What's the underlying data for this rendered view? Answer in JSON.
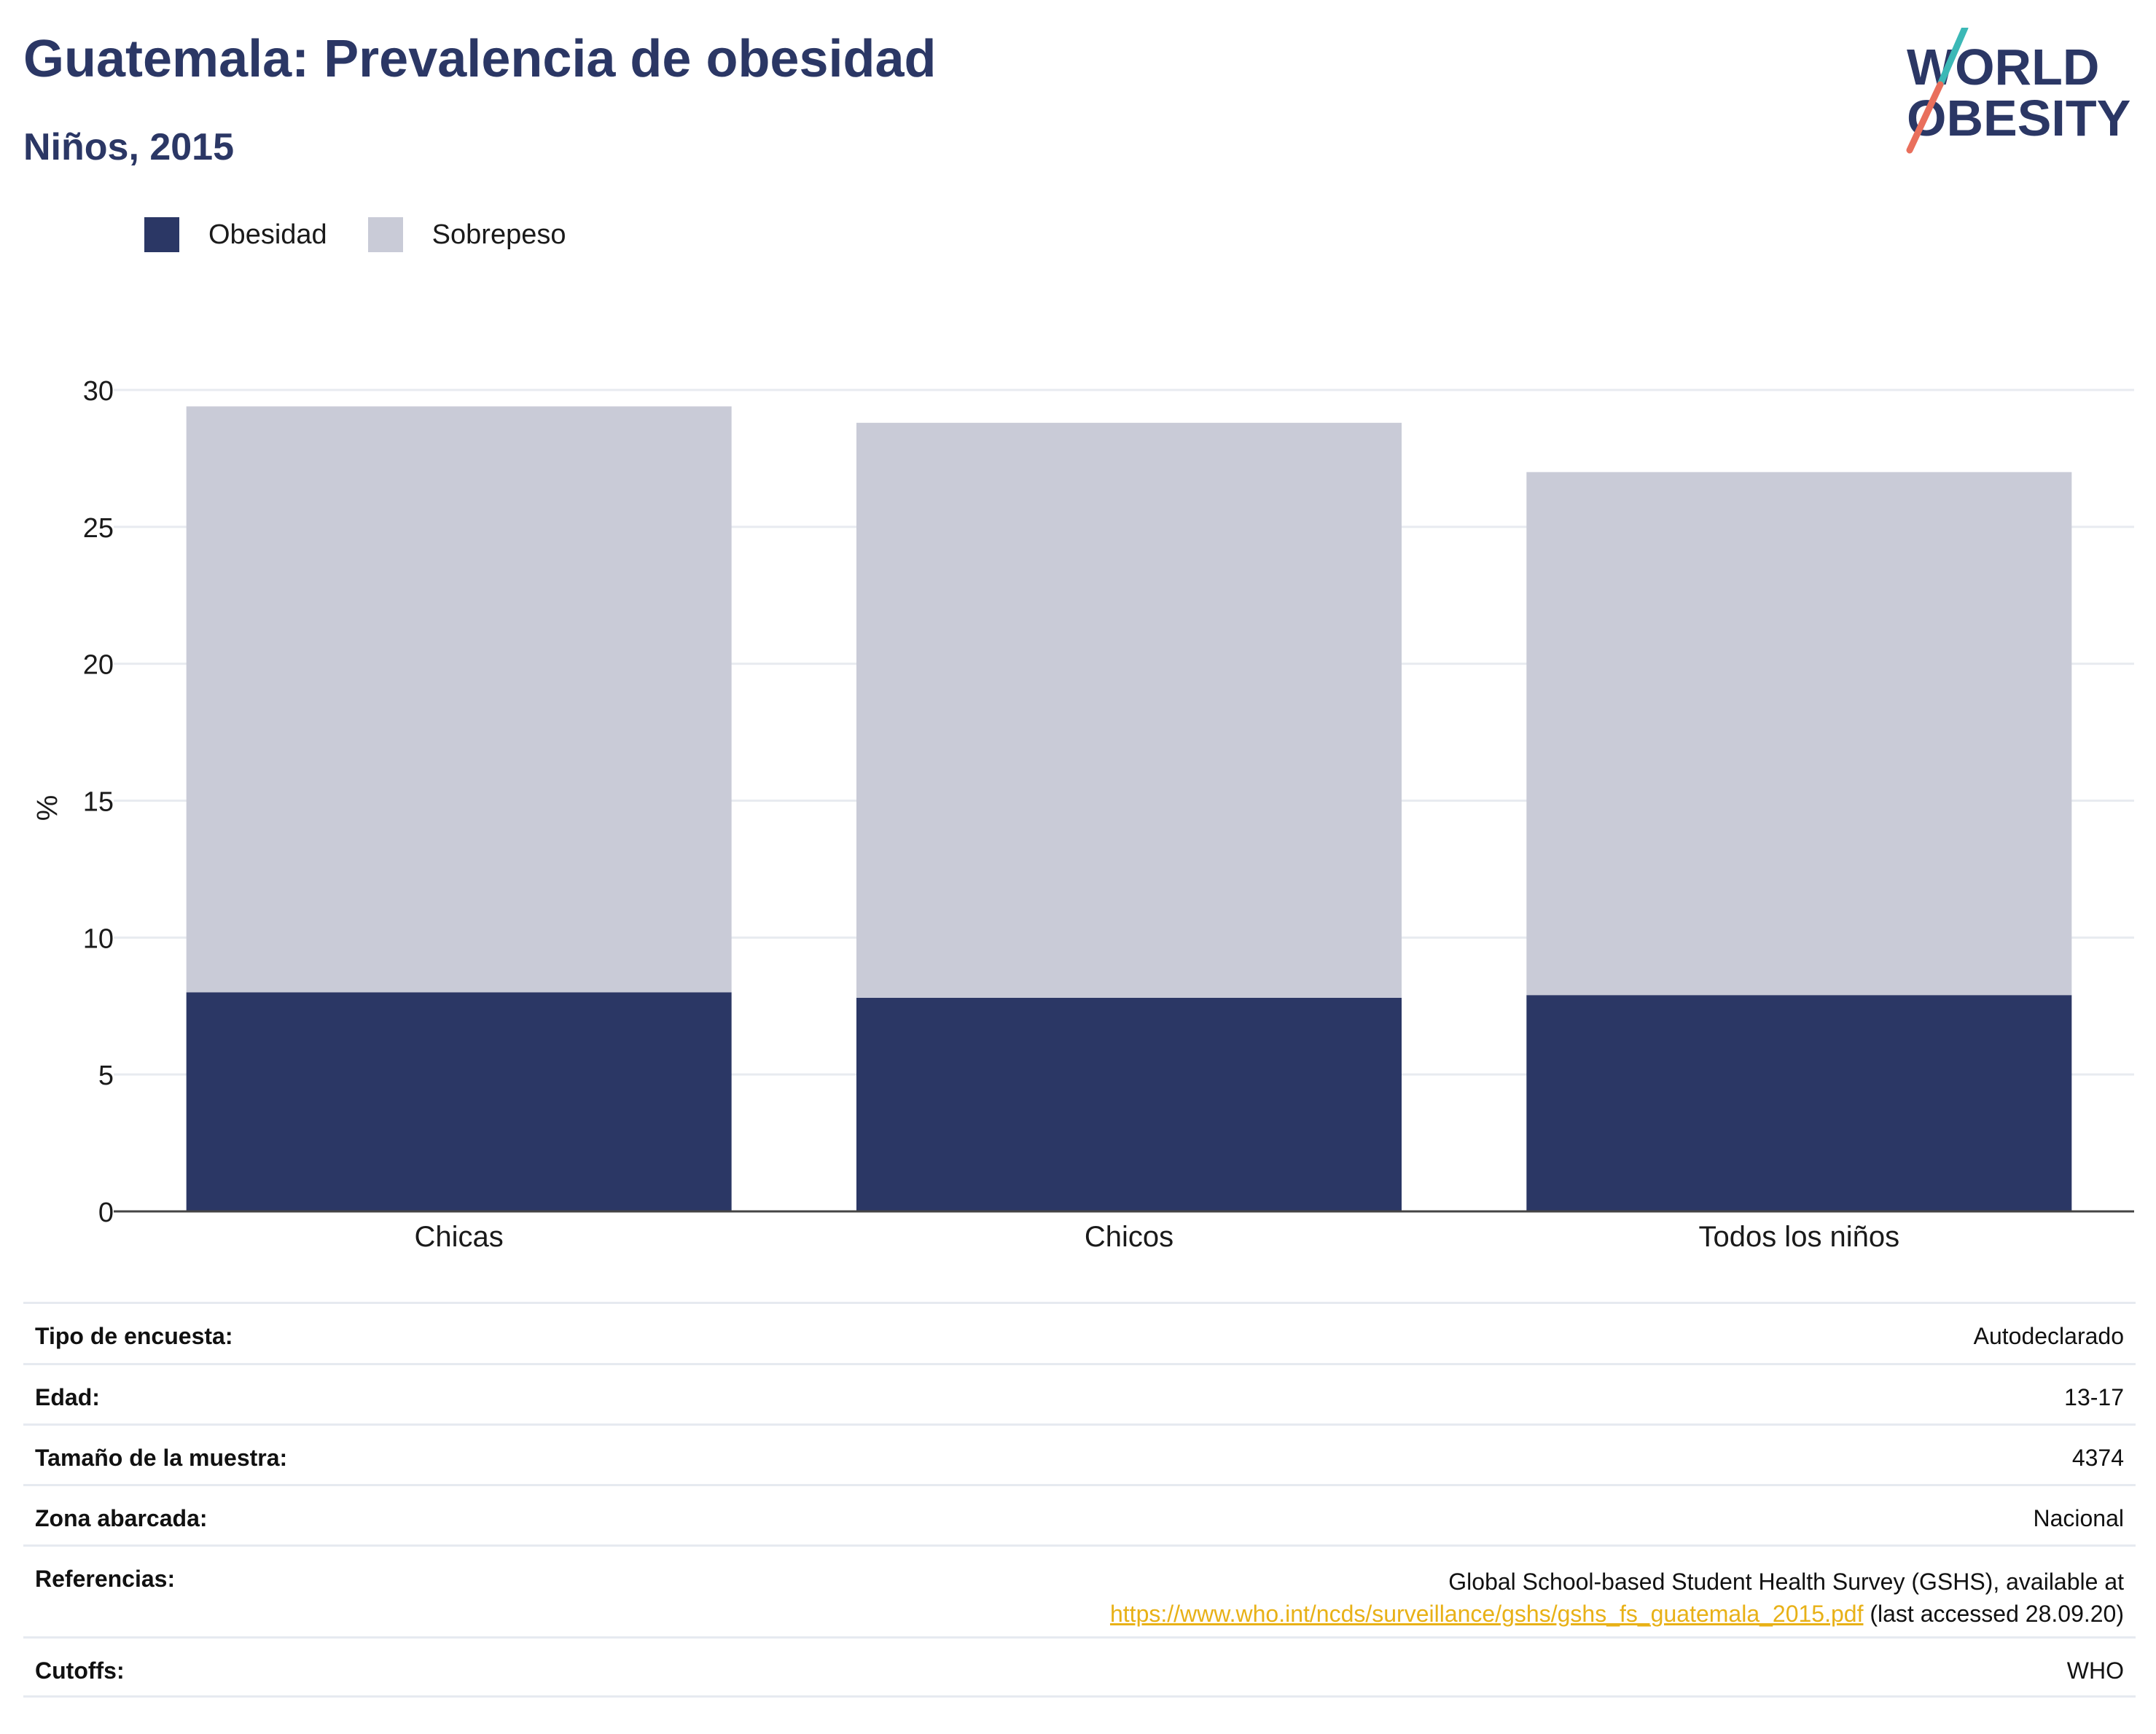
{
  "header": {
    "title": "Guatemala: Prevalencia de obesidad",
    "subtitle": "Niños, 2015",
    "logo_line1": "WORLD",
    "logo_line2": "OBESITY"
  },
  "legend": [
    {
      "label": "Obesidad",
      "color": "#2b3765"
    },
    {
      "label": "Sobrepeso",
      "color": "#c9cbd7"
    }
  ],
  "chart_data": {
    "type": "bar",
    "stacked": true,
    "categories": [
      "Chicas",
      "Chicos",
      "Todos los niños"
    ],
    "series": [
      {
        "name": "Obesidad",
        "color": "#2b3765",
        "values": [
          8.0,
          7.8,
          7.9
        ]
      },
      {
        "name": "Sobrepeso",
        "color": "#c9cbd7",
        "values": [
          21.4,
          21.0,
          19.1
        ]
      }
    ],
    "ylabel": "%",
    "ylim": [
      0,
      30
    ],
    "yticks": [
      0,
      5,
      10,
      15,
      20,
      25,
      30
    ],
    "grid": true,
    "legend_position": "top-left"
  },
  "info": {
    "rows": [
      {
        "label": "Tipo de encuesta:",
        "value": "Autodeclarado"
      },
      {
        "label": "Edad:",
        "value": "13-17"
      },
      {
        "label": "Tamaño de la muestra:",
        "value": "4374"
      },
      {
        "label": "Zona abarcada:",
        "value": "Nacional"
      }
    ],
    "references_label": "Referencias:",
    "references_text1": "Global School-based Student Health Survey (GSHS), available at",
    "references_link": "https://www.who.int/ncds/surveillance/gshs/gshs_fs_guatemala_2015.pdf",
    "references_text2": " (last accessed 28.09.20)",
    "cutoffs_label": "Cutoffs:",
    "cutoffs_value": "WHO"
  }
}
